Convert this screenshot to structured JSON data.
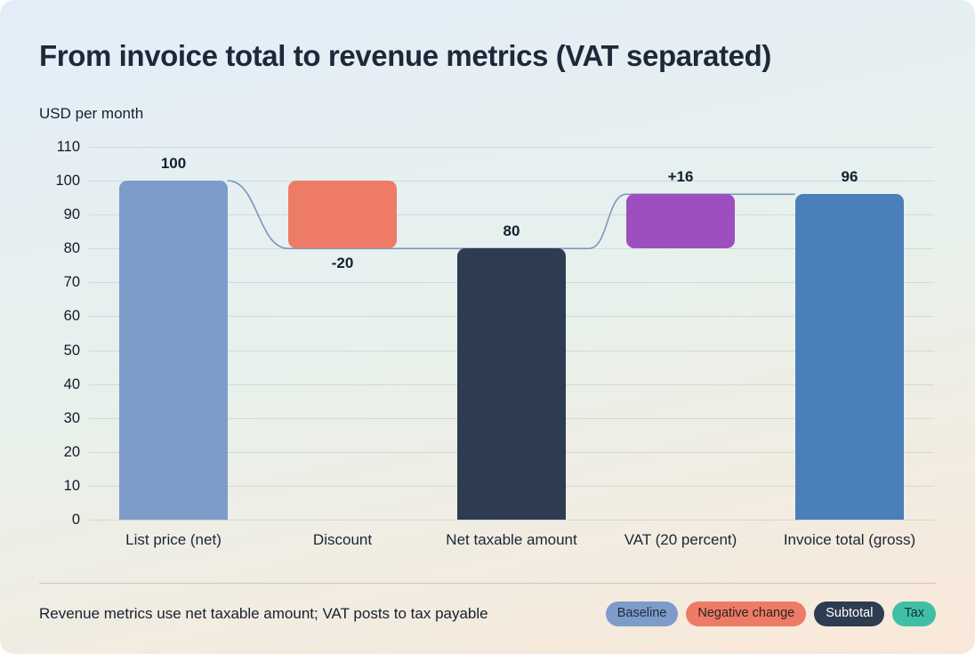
{
  "title": "From invoice total to revenue metrics (VAT separated)",
  "footer": {
    "note": "Revenue metrics use net taxable amount; VAT posts to tax payable"
  },
  "legend": [
    {
      "label": "Baseline",
      "color": "#7e9cc9",
      "text_color": "#1f2c3d"
    },
    {
      "label": "Negative change",
      "color": "#ee7b66",
      "text_color": "#2d2420"
    },
    {
      "label": "Subtotal",
      "color": "#2e3c52",
      "text_color": "#ffffff"
    },
    {
      "label": "Tax",
      "color": "#3fc0a6",
      "text_color": "#0f322b"
    }
  ],
  "chart_data": {
    "type": "bar",
    "subtype": "waterfall",
    "title": "From invoice total to revenue metrics (VAT separated)",
    "ylabel": "USD per month",
    "ylim": [
      0,
      110
    ],
    "yticks": [
      110,
      100,
      90,
      80,
      70,
      60,
      50,
      40,
      30,
      20,
      10,
      0
    ],
    "grid": true,
    "legend_position": "bottom-right",
    "connector_color": "#7e96bb",
    "categories": [
      "List price (net)",
      "Discount",
      "Net taxable amount",
      "VAT (20 percent)",
      "Invoice total (gross)"
    ],
    "bars": [
      {
        "label": "List price (net)",
        "start": 0,
        "end": 100,
        "value_label": "100",
        "role": "baseline",
        "color": "#7e9cc9",
        "label_position": "above"
      },
      {
        "label": "Discount",
        "start": 100,
        "end": 80,
        "value_label": "-20",
        "role": "negative",
        "color": "#ee7b66",
        "label_position": "below"
      },
      {
        "label": "Net taxable amount",
        "start": 0,
        "end": 80,
        "value_label": "80",
        "role": "subtotal",
        "color": "#2e3c52",
        "label_position": "above"
      },
      {
        "label": "VAT (20 percent)",
        "start": 80,
        "end": 96,
        "value_label": "+16",
        "role": "tax",
        "color": "#9d4fbf",
        "label_position": "above"
      },
      {
        "label": "Invoice total (gross)",
        "start": 0,
        "end": 96,
        "value_label": "96",
        "role": "total",
        "color": "#4a7fba",
        "label_position": "above"
      }
    ]
  }
}
